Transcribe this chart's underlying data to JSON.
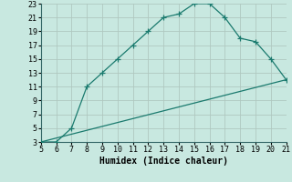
{
  "xlabel": "Humidex (Indice chaleur)",
  "bg_color": "#c8e8e0",
  "grid_color": "#b0c8c0",
  "line_color": "#1a7a6e",
  "xlim": [
    5,
    21
  ],
  "ylim": [
    3,
    23
  ],
  "xticks": [
    5,
    6,
    7,
    8,
    9,
    10,
    11,
    12,
    13,
    14,
    15,
    16,
    17,
    18,
    19,
    20,
    21
  ],
  "yticks": [
    3,
    5,
    7,
    9,
    11,
    13,
    15,
    17,
    19,
    21,
    23
  ],
  "curve1_x": [
    5,
    6,
    7,
    8,
    9,
    10,
    11,
    12,
    13,
    14,
    15,
    16,
    17,
    18,
    19,
    20,
    21
  ],
  "curve1_y": [
    3,
    3,
    5,
    11,
    13,
    15,
    17,
    19,
    21,
    21.5,
    23,
    23,
    21,
    18,
    17.5,
    15,
    12
  ],
  "curve2_x": [
    5,
    21
  ],
  "curve2_y": [
    3,
    12
  ]
}
